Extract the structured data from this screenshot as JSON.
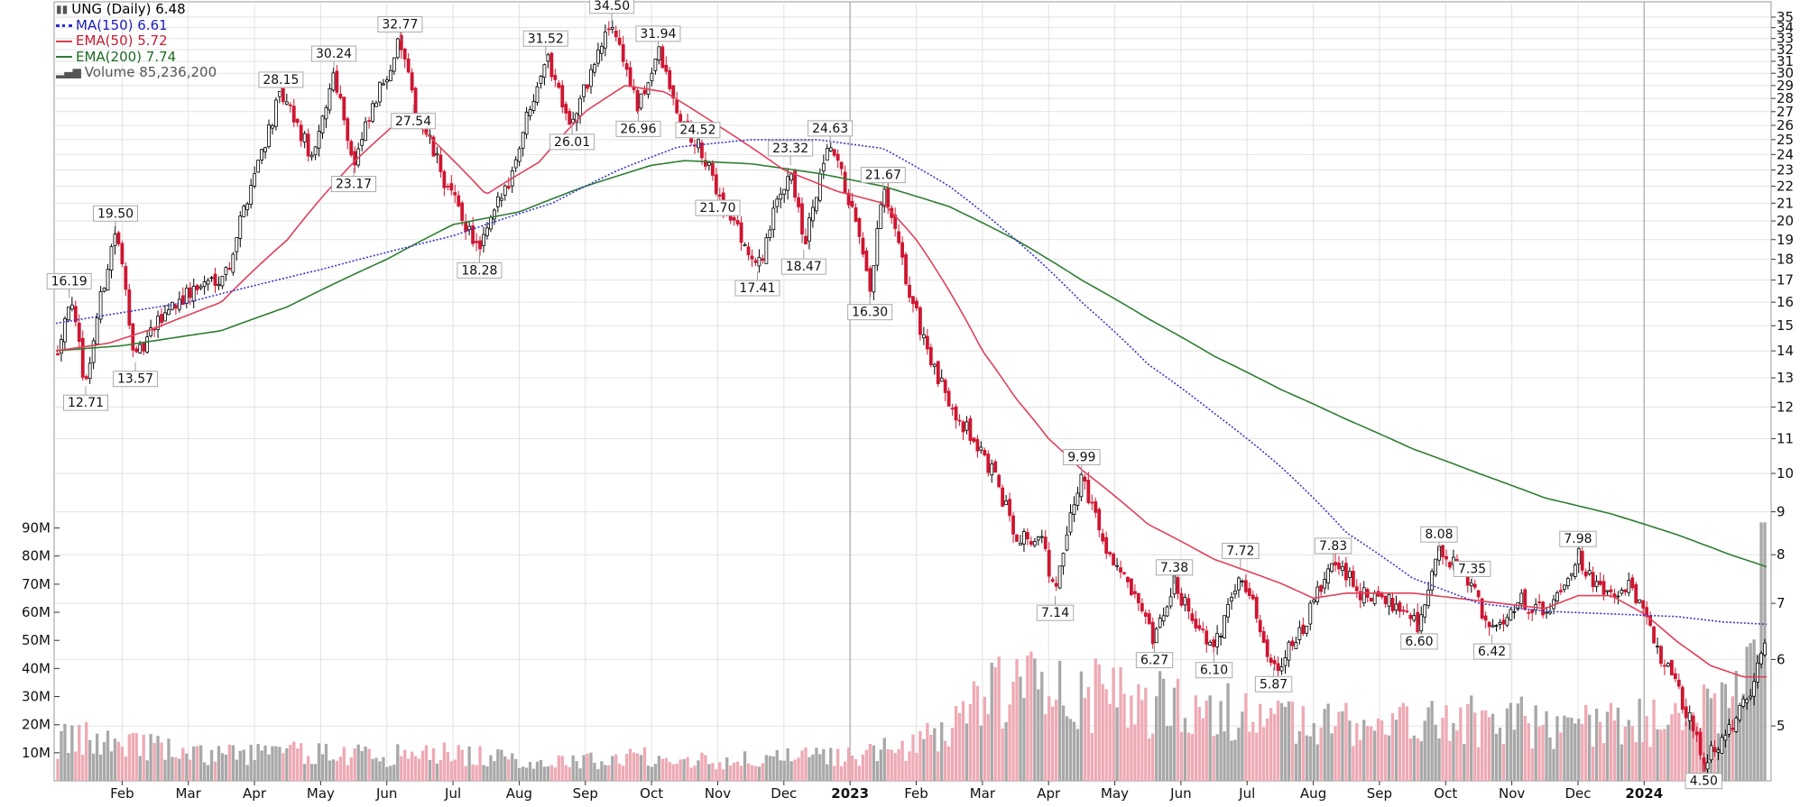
{
  "legend": {
    "title": "UNG (Daily) 6.48",
    "ma150": "MA(150) 6.61",
    "ema50": "EMA(50) 5.72",
    "ema200": "EMA(200) 7.74",
    "volume": "Volume 85,236,200"
  },
  "colors": {
    "ma150": "#3838c8",
    "ema50": "#e0405a",
    "ema200": "#2e7d32",
    "up_candle": "#000000",
    "down_candle": "#d01530",
    "vol_up": "#a8a8a8",
    "vol_down": "#eeaab4",
    "grid": "#e2e2e2"
  },
  "chart_data": {
    "type": "candlestick",
    "symbol": "UNG",
    "interval": "Daily",
    "price_scale": "log",
    "price_ticks": [
      "5",
      "6",
      "7",
      "8",
      "9",
      "10",
      "11",
      "12",
      "13",
      "14",
      "15",
      "16",
      "17",
      "18",
      "19",
      "20",
      "21",
      "22",
      "23",
      "24",
      "25",
      "26",
      "27",
      "28",
      "29",
      "30",
      "31",
      "32",
      "33",
      "34",
      "35"
    ],
    "volume_ticks": [
      "10M",
      "20M",
      "30M",
      "40M",
      "50M",
      "60M",
      "70M",
      "80M",
      "90M"
    ],
    "x_tick_labels": [
      "Feb",
      "Mar",
      "Apr",
      "May",
      "Jun",
      "Jul",
      "Aug",
      "Sep",
      "Oct",
      "Nov",
      "Dec",
      "2023",
      "Feb",
      "Mar",
      "Apr",
      "May",
      "Jun",
      "Jul",
      "Aug",
      "Sep",
      "Oct",
      "Nov",
      "Dec",
      "2024"
    ],
    "price_anchors": [
      {
        "m": 0.0,
        "p": 13.8
      },
      {
        "m": 0.2,
        "p": 16.2
      },
      {
        "m": 0.45,
        "p": 12.7
      },
      {
        "m": 0.9,
        "p": 19.5
      },
      {
        "m": 1.2,
        "p": 13.6
      },
      {
        "m": 1.7,
        "p": 15.8
      },
      {
        "m": 2.6,
        "p": 17.5
      },
      {
        "m": 3.4,
        "p": 28.2
      },
      {
        "m": 3.9,
        "p": 23.5
      },
      {
        "m": 4.2,
        "p": 30.2
      },
      {
        "m": 4.5,
        "p": 23.2
      },
      {
        "m": 5.2,
        "p": 32.8
      },
      {
        "m": 5.4,
        "p": 27.5
      },
      {
        "m": 5.9,
        "p": 22.0
      },
      {
        "m": 6.4,
        "p": 18.3
      },
      {
        "m": 6.9,
        "p": 23.0
      },
      {
        "m": 7.4,
        "p": 31.5
      },
      {
        "m": 7.8,
        "p": 26.0
      },
      {
        "m": 8.4,
        "p": 34.5
      },
      {
        "m": 8.8,
        "p": 27.0
      },
      {
        "m": 9.1,
        "p": 31.9
      },
      {
        "m": 9.4,
        "p": 26.5
      },
      {
        "m": 9.7,
        "p": 24.5
      },
      {
        "m": 10.0,
        "p": 21.7
      },
      {
        "m": 10.6,
        "p": 17.4
      },
      {
        "m": 11.1,
        "p": 23.3
      },
      {
        "m": 11.3,
        "p": 18.5
      },
      {
        "m": 11.7,
        "p": 24.6
      },
      {
        "m": 12.0,
        "p": 21.0
      },
      {
        "m": 12.3,
        "p": 16.3
      },
      {
        "m": 12.5,
        "p": 21.7
      },
      {
        "m": 12.9,
        "p": 16.3
      },
      {
        "m": 13.3,
        "p": 13.0
      },
      {
        "m": 13.7,
        "p": 11.5
      },
      {
        "m": 14.1,
        "p": 10.2
      },
      {
        "m": 14.5,
        "p": 8.5
      },
      {
        "m": 14.9,
        "p": 8.3
      },
      {
        "m": 15.1,
        "p": 7.14
      },
      {
        "m": 15.5,
        "p": 9.99
      },
      {
        "m": 15.8,
        "p": 8.4
      },
      {
        "m": 16.2,
        "p": 7.3
      },
      {
        "m": 16.6,
        "p": 6.27
      },
      {
        "m": 16.9,
        "p": 7.38
      },
      {
        "m": 17.3,
        "p": 6.5
      },
      {
        "m": 17.5,
        "p": 6.1
      },
      {
        "m": 17.9,
        "p": 7.72
      },
      {
        "m": 18.2,
        "p": 6.5
      },
      {
        "m": 18.4,
        "p": 5.87
      },
      {
        "m": 18.8,
        "p": 6.4
      },
      {
        "m": 19.3,
        "p": 7.83
      },
      {
        "m": 19.8,
        "p": 7.1
      },
      {
        "m": 20.3,
        "p": 7.0
      },
      {
        "m": 20.6,
        "p": 6.6
      },
      {
        "m": 20.9,
        "p": 8.08
      },
      {
        "m": 21.4,
        "p": 7.35
      },
      {
        "m": 21.7,
        "p": 6.42
      },
      {
        "m": 22.1,
        "p": 7.1
      },
      {
        "m": 22.5,
        "p": 6.8
      },
      {
        "m": 23.0,
        "p": 7.98
      },
      {
        "m": 23.4,
        "p": 7.1
      },
      {
        "m": 23.8,
        "p": 7.3
      },
      {
        "m": 24.2,
        "p": 6.2
      },
      {
        "m": 24.6,
        "p": 5.3
      },
      {
        "m": 24.9,
        "p": 4.5
      },
      {
        "m": 25.3,
        "p": 5.0
      },
      {
        "m": 25.6,
        "p": 5.4
      },
      {
        "m": 25.85,
        "p": 6.48
      }
    ],
    "ma150": [
      {
        "m": 0.0,
        "p": 15.1
      },
      {
        "m": 2.0,
        "p": 16.0
      },
      {
        "m": 4.0,
        "p": 17.5
      },
      {
        "m": 6.0,
        "p": 19.2
      },
      {
        "m": 7.5,
        "p": 21.0
      },
      {
        "m": 8.5,
        "p": 23.0
      },
      {
        "m": 9.4,
        "p": 24.5
      },
      {
        "m": 10.5,
        "p": 25.0
      },
      {
        "m": 11.5,
        "p": 25.0
      },
      {
        "m": 12.5,
        "p": 24.4
      },
      {
        "m": 13.5,
        "p": 22.0
      },
      {
        "m": 14.5,
        "p": 19.0
      },
      {
        "m": 15.5,
        "p": 16.0
      },
      {
        "m": 16.5,
        "p": 13.5
      },
      {
        "m": 17.5,
        "p": 11.8
      },
      {
        "m": 18.5,
        "p": 10.2
      },
      {
        "m": 19.5,
        "p": 8.5
      },
      {
        "m": 20.5,
        "p": 7.5
      },
      {
        "m": 21.5,
        "p": 7.0
      },
      {
        "m": 22.5,
        "p": 6.85
      },
      {
        "m": 23.5,
        "p": 6.8
      },
      {
        "m": 24.5,
        "p": 6.75
      },
      {
        "m": 25.2,
        "p": 6.65
      },
      {
        "m": 25.85,
        "p": 6.61
      }
    ],
    "ema50": [
      {
        "m": 0.0,
        "p": 14.0
      },
      {
        "m": 0.8,
        "p": 14.3
      },
      {
        "m": 1.5,
        "p": 14.9
      },
      {
        "m": 2.5,
        "p": 16.0
      },
      {
        "m": 3.5,
        "p": 19.0
      },
      {
        "m": 4.5,
        "p": 23.5
      },
      {
        "m": 5.3,
        "p": 26.8
      },
      {
        "m": 5.8,
        "p": 24.5
      },
      {
        "m": 6.5,
        "p": 21.5
      },
      {
        "m": 7.3,
        "p": 23.5
      },
      {
        "m": 8.0,
        "p": 27.0
      },
      {
        "m": 8.6,
        "p": 29.0
      },
      {
        "m": 9.2,
        "p": 28.5
      },
      {
        "m": 10.0,
        "p": 26.0
      },
      {
        "m": 11.0,
        "p": 23.0
      },
      {
        "m": 11.8,
        "p": 21.7
      },
      {
        "m": 12.5,
        "p": 21.0
      },
      {
        "m": 13.0,
        "p": 19.0
      },
      {
        "m": 13.5,
        "p": 16.5
      },
      {
        "m": 14.0,
        "p": 14.0
      },
      {
        "m": 14.5,
        "p": 12.3
      },
      {
        "m": 15.0,
        "p": 11.0
      },
      {
        "m": 15.5,
        "p": 10.1
      },
      {
        "m": 16.0,
        "p": 9.4
      },
      {
        "m": 16.5,
        "p": 8.7
      },
      {
        "m": 17.5,
        "p": 7.9
      },
      {
        "m": 18.5,
        "p": 7.4
      },
      {
        "m": 19.0,
        "p": 7.1
      },
      {
        "m": 19.5,
        "p": 7.2
      },
      {
        "m": 20.5,
        "p": 7.2
      },
      {
        "m": 21.5,
        "p": 7.05
      },
      {
        "m": 22.5,
        "p": 6.9
      },
      {
        "m": 23.0,
        "p": 7.15
      },
      {
        "m": 23.5,
        "p": 7.15
      },
      {
        "m": 24.0,
        "p": 6.8
      },
      {
        "m": 24.5,
        "p": 6.3
      },
      {
        "m": 25.0,
        "p": 5.9
      },
      {
        "m": 25.5,
        "p": 5.72
      },
      {
        "m": 25.85,
        "p": 5.72
      }
    ],
    "ema200": [
      {
        "m": 0.0,
        "p": 14.0
      },
      {
        "m": 1.0,
        "p": 14.2
      },
      {
        "m": 2.5,
        "p": 14.8
      },
      {
        "m": 3.5,
        "p": 15.8
      },
      {
        "m": 5.0,
        "p": 18.0
      },
      {
        "m": 6.0,
        "p": 19.8
      },
      {
        "m": 7.0,
        "p": 20.5
      },
      {
        "m": 8.0,
        "p": 22.0
      },
      {
        "m": 9.0,
        "p": 23.3
      },
      {
        "m": 9.5,
        "p": 23.6
      },
      {
        "m": 10.5,
        "p": 23.4
      },
      {
        "m": 11.5,
        "p": 22.8
      },
      {
        "m": 12.5,
        "p": 22.0
      },
      {
        "m": 13.5,
        "p": 20.8
      },
      {
        "m": 14.5,
        "p": 19.0
      },
      {
        "m": 15.5,
        "p": 17.0
      },
      {
        "m": 16.5,
        "p": 15.3
      },
      {
        "m": 17.5,
        "p": 13.8
      },
      {
        "m": 18.5,
        "p": 12.6
      },
      {
        "m": 19.5,
        "p": 11.6
      },
      {
        "m": 20.5,
        "p": 10.7
      },
      {
        "m": 21.5,
        "p": 10.0
      },
      {
        "m": 22.5,
        "p": 9.35
      },
      {
        "m": 23.5,
        "p": 8.95
      },
      {
        "m": 24.5,
        "p": 8.45
      },
      {
        "m": 25.3,
        "p": 8.0
      },
      {
        "m": 25.85,
        "p": 7.74
      }
    ],
    "annotations": [
      {
        "text": "16.19",
        "m": 0.2,
        "p": 16.19,
        "pos": "above"
      },
      {
        "text": "12.71",
        "m": 0.45,
        "p": 12.71,
        "pos": "below"
      },
      {
        "text": "19.50",
        "m": 0.9,
        "p": 19.5,
        "pos": "above"
      },
      {
        "text": "13.57",
        "m": 1.2,
        "p": 13.57,
        "pos": "below"
      },
      {
        "text": "28.15",
        "m": 3.4,
        "p": 28.15,
        "pos": "above"
      },
      {
        "text": "30.24",
        "m": 4.2,
        "p": 30.24,
        "pos": "above"
      },
      {
        "text": "23.17",
        "m": 4.5,
        "p": 23.17,
        "pos": "below"
      },
      {
        "text": "32.77",
        "m": 5.2,
        "p": 32.77,
        "pos": "above"
      },
      {
        "text": "27.54",
        "m": 5.4,
        "p": 27.54,
        "pos": "below"
      },
      {
        "text": "18.28",
        "m": 6.4,
        "p": 18.28,
        "pos": "below"
      },
      {
        "text": "31.52",
        "m": 7.4,
        "p": 31.52,
        "pos": "above"
      },
      {
        "text": "26.01",
        "m": 7.8,
        "p": 26.01,
        "pos": "below"
      },
      {
        "text": "34.50",
        "m": 8.4,
        "p": 34.5,
        "pos": "above"
      },
      {
        "text": "26.96",
        "m": 8.8,
        "p": 26.96,
        "pos": "below"
      },
      {
        "text": "31.94",
        "m": 9.1,
        "p": 31.94,
        "pos": "above"
      },
      {
        "text": "24.52",
        "m": 9.7,
        "p": 24.52,
        "pos": "above"
      },
      {
        "text": "21.70",
        "m": 10.0,
        "p": 21.7,
        "pos": "below"
      },
      {
        "text": "17.41",
        "m": 10.6,
        "p": 17.41,
        "pos": "below"
      },
      {
        "text": "23.32",
        "m": 11.1,
        "p": 23.32,
        "pos": "above"
      },
      {
        "text": "18.47",
        "m": 11.3,
        "p": 18.47,
        "pos": "below"
      },
      {
        "text": "24.63",
        "m": 11.7,
        "p": 24.63,
        "pos": "above"
      },
      {
        "text": "21.67",
        "m": 12.5,
        "p": 21.67,
        "pos": "above"
      },
      {
        "text": "16.30",
        "m": 12.3,
        "p": 16.3,
        "pos": "below"
      },
      {
        "text": "9.99",
        "m": 15.5,
        "p": 9.99,
        "pos": "above"
      },
      {
        "text": "7.14",
        "m": 15.1,
        "p": 7.14,
        "pos": "below"
      },
      {
        "text": "7.38",
        "m": 16.9,
        "p": 7.38,
        "pos": "above"
      },
      {
        "text": "6.27",
        "m": 16.6,
        "p": 6.27,
        "pos": "below"
      },
      {
        "text": "7.72",
        "m": 17.9,
        "p": 7.72,
        "pos": "above"
      },
      {
        "text": "6.10",
        "m": 17.5,
        "p": 6.1,
        "pos": "below"
      },
      {
        "text": "5.87",
        "m": 18.4,
        "p": 5.87,
        "pos": "below"
      },
      {
        "text": "7.83",
        "m": 19.3,
        "p": 7.83,
        "pos": "above"
      },
      {
        "text": "8.08",
        "m": 20.9,
        "p": 8.08,
        "pos": "above"
      },
      {
        "text": "6.60",
        "m": 20.6,
        "p": 6.6,
        "pos": "below"
      },
      {
        "text": "7.35",
        "m": 21.4,
        "p": 7.35,
        "pos": "above"
      },
      {
        "text": "6.42",
        "m": 21.7,
        "p": 6.42,
        "pos": "below"
      },
      {
        "text": "7.98",
        "m": 23.0,
        "p": 7.98,
        "pos": "above"
      },
      {
        "text": "4.50",
        "m": 24.9,
        "p": 4.5,
        "pos": "below"
      }
    ],
    "volume_anchors": [
      {
        "m": 0.0,
        "v": 14
      },
      {
        "m": 1.0,
        "v": 15
      },
      {
        "m": 2.0,
        "v": 9
      },
      {
        "m": 3.0,
        "v": 10
      },
      {
        "m": 4.0,
        "v": 10
      },
      {
        "m": 5.0,
        "v": 9
      },
      {
        "m": 6.0,
        "v": 10
      },
      {
        "m": 7.0,
        "v": 7
      },
      {
        "m": 8.0,
        "v": 7
      },
      {
        "m": 9.0,
        "v": 9
      },
      {
        "m": 10.0,
        "v": 7
      },
      {
        "m": 11.0,
        "v": 8
      },
      {
        "m": 12.0,
        "v": 9
      },
      {
        "m": 13.0,
        "v": 12
      },
      {
        "m": 13.5,
        "v": 20
      },
      {
        "m": 14.0,
        "v": 30
      },
      {
        "m": 15.0,
        "v": 35
      },
      {
        "m": 16.0,
        "v": 28
      },
      {
        "m": 17.0,
        "v": 27
      },
      {
        "m": 18.0,
        "v": 24
      },
      {
        "m": 19.0,
        "v": 20
      },
      {
        "m": 20.0,
        "v": 19
      },
      {
        "m": 21.0,
        "v": 21
      },
      {
        "m": 22.0,
        "v": 21
      },
      {
        "m": 23.0,
        "v": 19
      },
      {
        "m": 24.0,
        "v": 21
      },
      {
        "m": 25.0,
        "v": 24
      },
      {
        "m": 25.5,
        "v": 30
      },
      {
        "m": 25.85,
        "v": 85
      }
    ],
    "volume_range": [
      0,
      95
    ],
    "price_range": [
      4.3,
      36.5
    ]
  }
}
